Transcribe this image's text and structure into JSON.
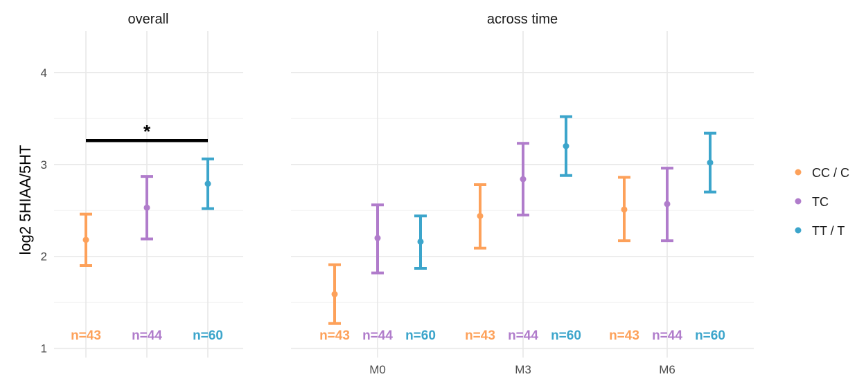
{
  "chart_data": {
    "type": "errorbar",
    "ylabel": "log2 5HIAA/5HT",
    "ylim": [
      0.9,
      4.45
    ],
    "yticks": [
      1,
      2,
      3,
      4
    ],
    "grid": true,
    "legend_position": "right",
    "groups": [
      {
        "name": "CC / C",
        "color": "#FDA15A"
      },
      {
        "name": "TC",
        "color": "#B07CCB"
      },
      {
        "name": "TT / T",
        "color": "#3CA5CB"
      }
    ],
    "panels": [
      {
        "title": "overall",
        "categories": [],
        "points": [
          {
            "group": "CC / C",
            "y": 2.18,
            "ymin": 1.9,
            "ymax": 2.46,
            "n": "n=43"
          },
          {
            "group": "TC",
            "y": 2.53,
            "ymin": 2.19,
            "ymax": 2.87,
            "n": "n=44"
          },
          {
            "group": "TT / T",
            "y": 2.79,
            "ymin": 2.52,
            "ymax": 3.06,
            "n": "n=60"
          }
        ],
        "significance": {
          "from": "CC / C",
          "to": "TT / T",
          "y": 3.26,
          "label": "*"
        }
      },
      {
        "title": "across time",
        "categories": [
          "M0",
          "M3",
          "M6"
        ],
        "points": [
          {
            "category": "M0",
            "group": "CC / C",
            "y": 1.59,
            "ymin": 1.27,
            "ymax": 1.91,
            "n": "n=43"
          },
          {
            "category": "M0",
            "group": "TC",
            "y": 2.2,
            "ymin": 1.82,
            "ymax": 2.56,
            "n": "n=44"
          },
          {
            "category": "M0",
            "group": "TT / T",
            "y": 2.16,
            "ymin": 1.87,
            "ymax": 2.44,
            "n": "n=60"
          },
          {
            "category": "M3",
            "group": "CC / C",
            "y": 2.44,
            "ymin": 2.09,
            "ymax": 2.78,
            "n": "n=43"
          },
          {
            "category": "M3",
            "group": "TC",
            "y": 2.84,
            "ymin": 2.45,
            "ymax": 3.23,
            "n": "n=44"
          },
          {
            "category": "M3",
            "group": "TT / T",
            "y": 3.2,
            "ymin": 2.88,
            "ymax": 3.52,
            "n": "n=60"
          },
          {
            "category": "M6",
            "group": "CC / C",
            "y": 2.51,
            "ymin": 2.17,
            "ymax": 2.86,
            "n": "n=43"
          },
          {
            "category": "M6",
            "group": "TC",
            "y": 2.57,
            "ymin": 2.17,
            "ymax": 2.96,
            "n": "n=44"
          },
          {
            "category": "M6",
            "group": "TT / T",
            "y": 3.02,
            "ymin": 2.7,
            "ymax": 3.34,
            "n": "n=60"
          }
        ]
      }
    ]
  }
}
